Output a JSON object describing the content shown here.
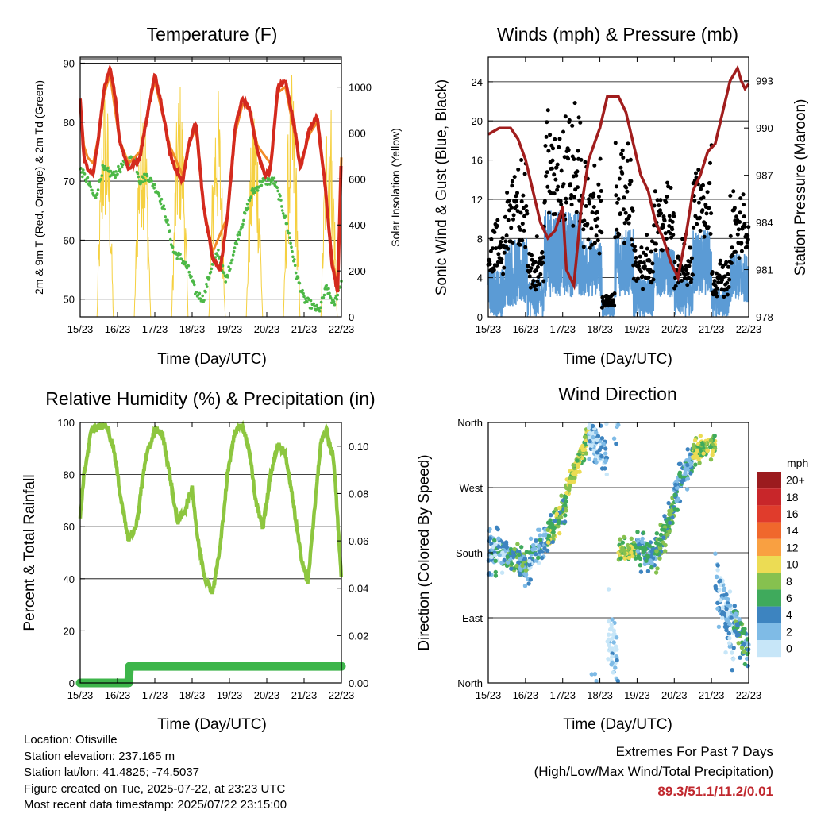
{
  "footer": {
    "location": "Location: Otisville",
    "elevation": "Station elevation: 237.165 m",
    "latlon": "Station lat/lon: 41.4825; -74.5037",
    "created": "Figure created on Tue, 2025-07-22, at 23:23 UTC",
    "recent": "Most recent data timestamp: 2025/07/22 23:15:00",
    "extremes_title": "Extremes For Past 7 Days",
    "extremes_sub": "(High/Low/Max Wind/Total Precipitation)",
    "extremes_values": "89.3/51.1/11.2/0.01"
  },
  "chart_data": [
    {
      "type": "line",
      "title": "Temperature (F)",
      "xlabel": "Time (Day/UTC)",
      "ylabel": "2m & 9m T (Red, Orange) & 2m Td (Green)",
      "y2label": "Solar Insolation (Yellow)",
      "xticks": [
        "15/23",
        "16/23",
        "17/23",
        "18/23",
        "19/23",
        "20/23",
        "21/23",
        "22/23"
      ],
      "yticks": [
        50,
        60,
        70,
        80,
        90
      ],
      "y2ticks": [
        0,
        200,
        400,
        600,
        800,
        1000
      ],
      "ylim": [
        47,
        91
      ],
      "y2lim": [
        0,
        1130
      ],
      "grid": "horizontal",
      "colors": {
        "t2m": "#d42a1e",
        "t9m": "#f28c28",
        "td": "#4cb847",
        "solar": "#f5d040"
      },
      "series": [
        {
          "key": "t2m",
          "x": [
            0,
            0.1,
            0.2,
            0.35,
            0.5,
            0.65,
            0.8,
            0.95,
            1.05,
            1.3,
            1.6,
            1.85,
            2.0,
            2.15,
            2.4,
            2.55,
            2.75,
            2.9,
            3.1,
            3.3,
            3.55,
            3.75,
            3.95,
            4.15,
            4.35,
            4.55,
            4.75,
            4.95,
            5.1,
            5.3,
            5.5,
            5.75,
            5.9,
            6.15,
            6.35,
            6.55,
            6.75,
            6.9,
            7.0
          ],
          "y": [
            84,
            74,
            72,
            71,
            78,
            86,
            89,
            84,
            77,
            72,
            74,
            83,
            88,
            84,
            75,
            72,
            70,
            76,
            80,
            66,
            57,
            55,
            64,
            79,
            84,
            82,
            75,
            71,
            72,
            86,
            87,
            79,
            72,
            79,
            81,
            70,
            56,
            51,
            75
          ]
        },
        {
          "key": "t9m",
          "x": [
            0,
            0.1,
            0.2,
            0.35,
            0.5,
            0.65,
            0.8,
            1.05,
            1.3,
            1.6,
            1.85,
            2.0,
            2.4,
            2.75,
            2.9,
            3.1,
            3.3,
            3.55,
            3.95,
            4.15,
            4.35,
            4.55,
            4.75,
            5.1,
            5.3,
            5.5,
            5.9,
            6.15,
            6.35,
            6.55,
            6.75,
            6.9,
            7.0
          ],
          "y": [
            83,
            76,
            74,
            73,
            78,
            85,
            88,
            77,
            73,
            75,
            83,
            87,
            76,
            71,
            76,
            79,
            66,
            58,
            64,
            78,
            83,
            82,
            76,
            73,
            85,
            86,
            73,
            78,
            80,
            70,
            57,
            52,
            74
          ]
        },
        {
          "key": "td",
          "x": [
            0,
            0.2,
            0.4,
            0.6,
            0.9,
            1.2,
            1.45,
            1.6,
            1.8,
            2.1,
            2.3,
            2.5,
            2.7,
            2.9,
            3.1,
            3.3,
            3.5,
            3.7,
            3.9,
            4.2,
            4.6,
            4.9,
            5.2,
            5.4,
            5.6,
            5.8,
            6.0,
            6.2,
            6.4,
            6.6,
            6.8,
            7.0
          ],
          "y": [
            72,
            70,
            67,
            72,
            71,
            73,
            74,
            70,
            71,
            68,
            64,
            58,
            57,
            55,
            51,
            50,
            55,
            58,
            53,
            60,
            68,
            70,
            70,
            66,
            61,
            54,
            50,
            49,
            48,
            52,
            49,
            53
          ]
        },
        {
          "key": "solar",
          "peaks": [
            1050,
            1080,
            1050,
            1030,
            980,
            1060,
            1040,
            1100,
            1120
          ],
          "peak_days": [
            0.55,
            0.65,
            1.7,
            2.75,
            3.75,
            4.8,
            5.8,
            6.65,
            6.8
          ]
        }
      ]
    },
    {
      "type": "scatter",
      "title": "Winds (mph) & Pressure (mb)",
      "xlabel": "Time (Day/UTC)",
      "ylabel": "Sonic Wind & Gust (Blue, Black)",
      "y2label": "Station Pressure (Maroon)",
      "xticks": [
        "15/23",
        "16/23",
        "17/23",
        "18/23",
        "19/23",
        "20/23",
        "21/23",
        "22/23"
      ],
      "yticks": [
        0,
        4,
        8,
        12,
        16,
        20,
        24
      ],
      "y2ticks": [
        978,
        981,
        984,
        987,
        990,
        993
      ],
      "ylim": [
        0,
        26.5
      ],
      "y2lim": [
        978,
        994.5
      ],
      "grid": "horizontal",
      "colors": {
        "wind": "#5b9bd5",
        "gust": "#000000",
        "pressure": "#a11d1d"
      },
      "pressure": {
        "x": [
          0,
          0.3,
          0.6,
          0.8,
          1.0,
          1.2,
          1.4,
          1.6,
          1.8,
          2.0,
          2.1,
          2.3,
          2.5,
          2.7,
          3.0,
          3.2,
          3.5,
          3.7,
          3.9,
          4.1,
          4.3,
          4.5,
          4.7,
          4.9,
          5.1,
          5.3,
          5.5,
          5.7,
          5.9,
          6.1,
          6.3,
          6.5,
          6.7,
          6.8,
          6.9,
          7.0
        ],
        "y": [
          989.6,
          990,
          990,
          989.3,
          988,
          986,
          984,
          983,
          983.5,
          985,
          981,
          980,
          985,
          988,
          990,
          992,
          992,
          991,
          989,
          987,
          986,
          984,
          983,
          981.5,
          980.5,
          983,
          986,
          987,
          988.5,
          989,
          991,
          993,
          993.8,
          993,
          992.5,
          992.8
        ]
      },
      "wind_envelope": [
        {
          "x0": 0.0,
          "x1": 0.45,
          "mid": 2.5,
          "amp": 2.5
        },
        {
          "x0": 0.45,
          "x1": 1.05,
          "mid": 4.5,
          "amp": 3.5
        },
        {
          "x0": 1.05,
          "x1": 1.5,
          "mid": 2.0,
          "amp": 2.0
        },
        {
          "x0": 1.5,
          "x1": 2.5,
          "mid": 6.5,
          "amp": 4.5
        },
        {
          "x0": 2.5,
          "x1": 3.05,
          "mid": 5.0,
          "amp": 3.0
        },
        {
          "x0": 3.05,
          "x1": 3.4,
          "mid": 0.6,
          "amp": 0.6
        },
        {
          "x0": 3.4,
          "x1": 3.9,
          "mid": 5.5,
          "amp": 3.5
        },
        {
          "x0": 3.9,
          "x1": 4.45,
          "mid": 2.0,
          "amp": 2.0
        },
        {
          "x0": 4.45,
          "x1": 5.0,
          "mid": 4.5,
          "amp": 2.5
        },
        {
          "x0": 5.0,
          "x1": 5.5,
          "mid": 2.0,
          "amp": 2.0
        },
        {
          "x0": 5.5,
          "x1": 6.0,
          "mid": 5.5,
          "amp": 3.5
        },
        {
          "x0": 6.0,
          "x1": 6.5,
          "mid": 1.5,
          "amp": 1.5
        },
        {
          "x0": 6.5,
          "x1": 7.0,
          "mid": 4.0,
          "amp": 2.5
        }
      ],
      "gust_scale": 1.9
    },
    {
      "type": "line",
      "title": "Relative Humidity (%) & Precipitation (in)",
      "xlabel": "Time (Day/UTC)",
      "ylabel": "Percent & Total Rainfall",
      "xticks": [
        "15/23",
        "16/23",
        "17/23",
        "18/23",
        "19/23",
        "20/23",
        "21/23",
        "22/23"
      ],
      "yticks": [
        0,
        20,
        40,
        60,
        80,
        100
      ],
      "y2ticks": [
        "0.00",
        "0.02",
        "0.04",
        "0.06",
        "0.08",
        "0.10"
      ],
      "ylim": [
        0,
        100
      ],
      "y2lim": [
        0,
        0.11
      ],
      "grid": "horizontal",
      "colors": {
        "rh": "#8dc63f",
        "precip": "#3db54a"
      },
      "rh": {
        "x": [
          0,
          0.1,
          0.3,
          0.5,
          0.7,
          0.9,
          1.1,
          1.3,
          1.5,
          1.75,
          2.0,
          2.2,
          2.4,
          2.6,
          2.8,
          3.0,
          3.15,
          3.35,
          3.55,
          3.75,
          3.95,
          4.15,
          4.35,
          4.55,
          4.7,
          4.9,
          5.1,
          5.3,
          5.5,
          5.7,
          5.9,
          6.1,
          6.3,
          6.45,
          6.6,
          6.8,
          7.0
        ],
        "y": [
          64,
          80,
          97,
          98,
          99,
          90,
          70,
          55,
          60,
          86,
          97,
          96,
          80,
          62,
          66,
          75,
          55,
          40,
          35,
          52,
          80,
          97,
          99,
          88,
          70,
          60,
          80,
          92,
          88,
          70,
          50,
          38,
          70,
          92,
          97,
          85,
          40
        ]
      },
      "precip": {
        "x": [
          0,
          1.3,
          1.32,
          7.0
        ],
        "y": [
          0,
          0,
          0.007,
          0.007
        ]
      }
    },
    {
      "type": "scatter",
      "title": "Wind Direction",
      "xlabel": "Time (Day/UTC)",
      "ylabel": "Direction (Colored By Speed)",
      "xticks": [
        "15/23",
        "16/23",
        "17/23",
        "18/23",
        "19/23",
        "20/23",
        "21/23",
        "22/23"
      ],
      "yticks": [
        "North",
        "East",
        "South",
        "West",
        "North"
      ],
      "ylim": [
        0,
        360
      ],
      "grid": "horizontal",
      "legend": {
        "title": "mph",
        "labels": [
          "20+",
          "18",
          "16",
          "14",
          "12",
          "10",
          "8",
          "6",
          "4",
          "2",
          "0"
        ],
        "colors": [
          "#9b1b1e",
          "#c8262a",
          "#e03c2c",
          "#f0682c",
          "#f9a041",
          "#ecdc54",
          "#86c14f",
          "#3faa5c",
          "#3d84c0",
          "#7fbbe6",
          "#c7e6f8"
        ]
      },
      "tracks": [
        {
          "x0": 0.0,
          "x1": 0.5,
          "d0": 185,
          "d1": 180,
          "spread": 35,
          "speed": 3
        },
        {
          "x0": 0.5,
          "x1": 1.1,
          "d0": 175,
          "d1": 160,
          "spread": 30,
          "speed": 5
        },
        {
          "x0": 1.1,
          "x1": 1.6,
          "d0": 170,
          "d1": 205,
          "spread": 30,
          "speed": 3
        },
        {
          "x0": 1.6,
          "x1": 2.1,
          "d0": 200,
          "d1": 250,
          "spread": 25,
          "speed": 7
        },
        {
          "x0": 2.1,
          "x1": 2.7,
          "d0": 260,
          "d1": 345,
          "spread": 20,
          "speed": 9
        },
        {
          "x0": 2.7,
          "x1": 3.2,
          "d0": 340,
          "d1": 320,
          "spread": 40,
          "speed": 2
        },
        {
          "x0": 3.2,
          "x1": 3.5,
          "d0": 80,
          "d1": 20,
          "spread": 70,
          "speed": 1
        },
        {
          "x0": 3.5,
          "x1": 4.0,
          "d0": 180,
          "d1": 185,
          "spread": 20,
          "speed": 8
        },
        {
          "x0": 4.0,
          "x1": 4.5,
          "d0": 185,
          "d1": 170,
          "spread": 30,
          "speed": 4
        },
        {
          "x0": 4.5,
          "x1": 5.0,
          "d0": 180,
          "d1": 240,
          "spread": 30,
          "speed": 6
        },
        {
          "x0": 5.0,
          "x1": 5.5,
          "d0": 260,
          "d1": 310,
          "spread": 30,
          "speed": 4
        },
        {
          "x0": 5.5,
          "x1": 6.1,
          "d0": 320,
          "d1": 330,
          "spread": 20,
          "speed": 8
        },
        {
          "x0": 6.1,
          "x1": 6.6,
          "d0": 150,
          "d1": 60,
          "spread": 60,
          "speed": 2
        },
        {
          "x0": 6.6,
          "x1": 7.0,
          "d0": 90,
          "d1": 40,
          "spread": 40,
          "speed": 5
        }
      ]
    }
  ]
}
